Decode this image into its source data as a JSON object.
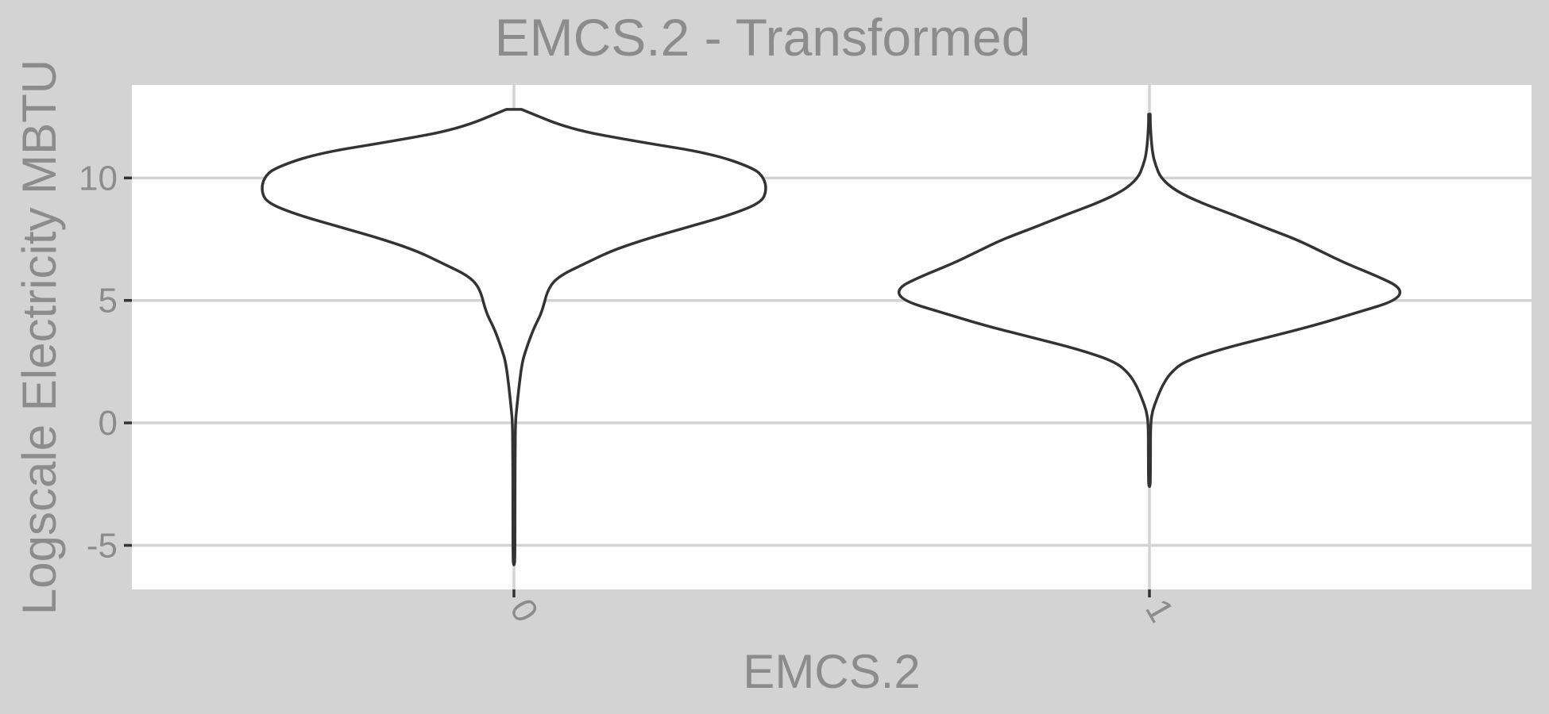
{
  "chart_data": {
    "type": "violin",
    "title": "EMCS.2 - Transformed",
    "xlabel": "EMCS.2",
    "ylabel": "Logscale Electricity MBTU",
    "categories": [
      "0",
      "1"
    ],
    "ylim": [
      -6.8,
      13.8
    ],
    "yticks": [
      -5,
      0,
      5,
      10
    ],
    "ytick_labels": [
      "-5",
      "0",
      "5",
      "10"
    ],
    "grid": true,
    "colors": {
      "panel_background": "#d3d3d3",
      "plot_background": "#ffffff",
      "grid": "#d3d3d3",
      "outline": "#333333",
      "text": "#8c8c8c"
    },
    "series": [
      {
        "category": "0",
        "range": [
          -5.8,
          12.8
        ],
        "density_profile": [
          [
            12.8,
            0.03
          ],
          [
            12.0,
            0.22
          ],
          [
            11.5,
            0.48
          ],
          [
            11.0,
            0.78
          ],
          [
            10.4,
            0.95
          ],
          [
            10.0,
            0.99
          ],
          [
            9.5,
            1.0
          ],
          [
            9.0,
            0.98
          ],
          [
            8.5,
            0.86
          ],
          [
            8.0,
            0.69
          ],
          [
            7.5,
            0.52
          ],
          [
            7.0,
            0.38
          ],
          [
            6.5,
            0.28
          ],
          [
            6.0,
            0.18
          ],
          [
            5.5,
            0.135
          ],
          [
            4.5,
            0.11
          ],
          [
            4.0,
            0.085
          ],
          [
            3.5,
            0.065
          ],
          [
            3.0,
            0.048
          ],
          [
            2.5,
            0.033
          ],
          [
            1.5,
            0.02
          ],
          [
            0.5,
            0.01
          ],
          [
            0.0,
            0.006
          ],
          [
            -1.0,
            0.005
          ],
          [
            -3.0,
            0.004
          ],
          [
            -5.0,
            0.004
          ],
          [
            -5.8,
            0.003
          ]
        ]
      },
      {
        "category": "1",
        "range": [
          -2.6,
          12.6
        ],
        "density_profile": [
          [
            12.6,
            0.003
          ],
          [
            12.0,
            0.004
          ],
          [
            11.0,
            0.012
          ],
          [
            10.5,
            0.025
          ],
          [
            10.0,
            0.045
          ],
          [
            9.5,
            0.1
          ],
          [
            9.0,
            0.2
          ],
          [
            8.5,
            0.33
          ],
          [
            8.0,
            0.45
          ],
          [
            7.5,
            0.58
          ],
          [
            7.0,
            0.68
          ],
          [
            6.5,
            0.78
          ],
          [
            6.0,
            0.9
          ],
          [
            5.5,
            1.0
          ],
          [
            5.0,
            0.98
          ],
          [
            4.5,
            0.82
          ],
          [
            4.0,
            0.66
          ],
          [
            3.5,
            0.47
          ],
          [
            3.0,
            0.28
          ],
          [
            2.5,
            0.135
          ],
          [
            2.0,
            0.08
          ],
          [
            1.5,
            0.05
          ],
          [
            1.0,
            0.03
          ],
          [
            0.5,
            0.012
          ],
          [
            0.0,
            0.005
          ],
          [
            -1.0,
            0.004
          ],
          [
            -2.0,
            0.004
          ],
          [
            -2.6,
            0.003
          ]
        ]
      }
    ]
  }
}
